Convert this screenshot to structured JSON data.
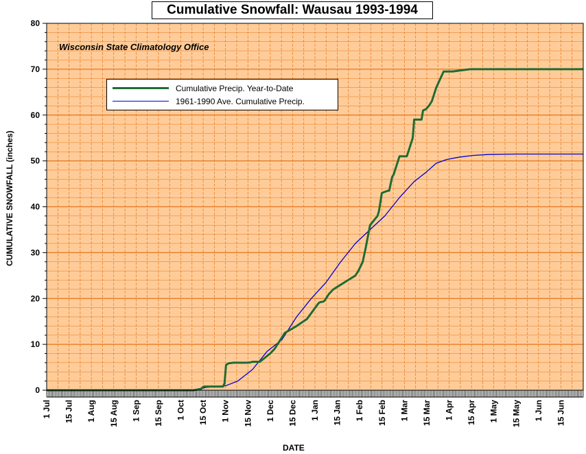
{
  "chart_data": {
    "type": "line",
    "title": "Cumulative Snowfall: Wausau 1993-1994",
    "source_note": "Wisconsin State Climatology Office",
    "xlabel": "DATE",
    "ylabel": "CUMULATIVE SNOWFALL (inches)",
    "ylim": [
      0,
      80
    ],
    "yticks": [
      0,
      10,
      20,
      30,
      40,
      50,
      60,
      70,
      80
    ],
    "xlim_days": [
      0,
      365
    ],
    "xtick_labels": [
      "1 Jul",
      "15 Jul",
      "1 Aug",
      "15 Aug",
      "1 Sep",
      "15 Sep",
      "1 Oct",
      "15 Oct",
      "1 Nov",
      "15 Nov",
      "1 Dec",
      "15 Dec",
      "1 Jan",
      "15 Jan",
      "1 Feb",
      "15 Feb",
      "1 Mar",
      "15 Mar",
      "1 Apr",
      "15 Apr",
      "1 May",
      "15 May",
      "1 Jun",
      "15 Jun"
    ],
    "grid": true,
    "legend_position": "upper-left",
    "colors": {
      "plot_bg": "#FFCC99",
      "grid": "#E0761E",
      "series1": "#1F6B32",
      "series2": "#0000CC"
    },
    "series": [
      {
        "name": "Cumulative Precip. Year-to-Date",
        "x": [
          0,
          100,
          105,
          106,
          107,
          120,
          121,
          122,
          124,
          125,
          127,
          137,
          139,
          140,
          145,
          152,
          155,
          162,
          170,
          177,
          185,
          186,
          188,
          189,
          190,
          191,
          192,
          195,
          200,
          205,
          210,
          212,
          215,
          217,
          220,
          225,
          226,
          228,
          232,
          233,
          235,
          236,
          240,
          245,
          249,
          250,
          252,
          255,
          256,
          258,
          260,
          262,
          265,
          270,
          276,
          288,
          365
        ],
        "y": [
          0,
          0,
          0.3,
          0.6,
          0.8,
          0.8,
          1.5,
          5.5,
          5.9,
          5.9,
          6,
          6,
          6.1,
          6.2,
          6.2,
          8,
          9,
          12.5,
          14,
          15.5,
          19,
          19.2,
          19.3,
          19.5,
          20,
          20.5,
          21,
          22,
          23,
          24,
          25,
          26,
          28,
          31,
          36,
          38,
          39,
          43,
          43.5,
          43.5,
          46.5,
          47,
          51,
          51,
          55,
          59,
          59,
          59,
          61,
          61.3,
          62,
          63,
          66,
          69.5,
          69.5,
          70,
          70
        ]
      },
      {
        "name": "1961-1990 Ave. Cumulative Precip.",
        "x": [
          0,
          100,
          105,
          108,
          115,
          122,
          130,
          140,
          150,
          160,
          170,
          180,
          190,
          200,
          210,
          220,
          230,
          240,
          250,
          258,
          265,
          272,
          280,
          290,
          300,
          320,
          365
        ],
        "y": [
          0,
          0,
          0.3,
          0.6,
          0.8,
          1,
          2,
          4.5,
          8.5,
          11,
          16,
          20,
          23.5,
          28,
          32,
          35,
          38,
          42,
          45.5,
          47.5,
          49.5,
          50.3,
          50.8,
          51.2,
          51.4,
          51.5,
          51.5
        ]
      }
    ]
  }
}
